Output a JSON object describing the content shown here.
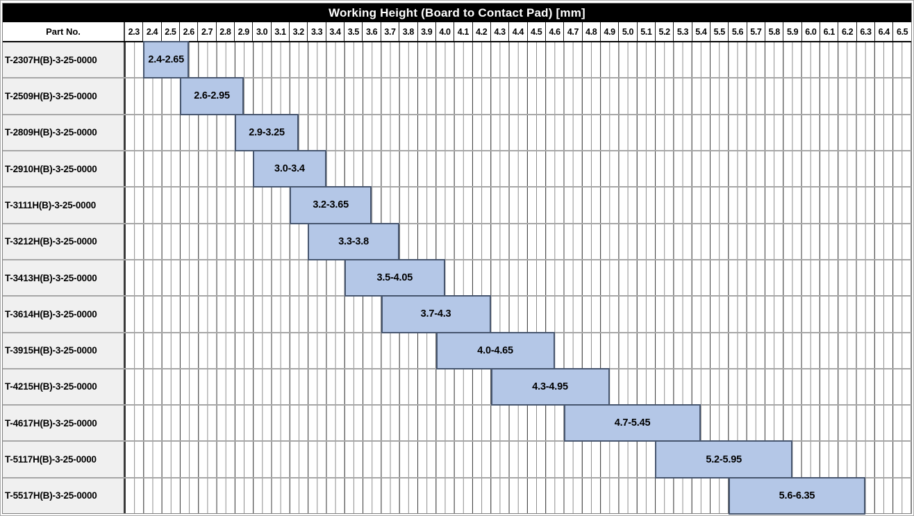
{
  "title": "Working Height (Board to Contact Pad) [mm]",
  "header": {
    "part_no_label": "Part No."
  },
  "colors": {
    "title_bg": "#000000",
    "title_text": "#ffffff",
    "bar_fill": "#b4c7e7",
    "bar_border": "#46556e",
    "part_cell_bg": "#f0f0f0",
    "grid_major": "#3d3d3d",
    "grid_minor": "#8a8a8a",
    "row_separator": "#a6a6a6"
  },
  "chart_data": {
    "type": "bar",
    "subtype": "horizontal-range",
    "title": "Working Height (Board to Contact Pad) [mm]",
    "grid": true,
    "x_axis": {
      "min": 2.3,
      "max": 6.6,
      "major_tick_step": 0.1,
      "minor_tick_step": 0.05,
      "tick_labels": [
        "2.3",
        "2.4",
        "2.5",
        "2.6",
        "2.7",
        "2.8",
        "2.9",
        "3.0",
        "3.1",
        "3.2",
        "3.3",
        "3.4",
        "3.5",
        "3.6",
        "3.7",
        "3.8",
        "3.9",
        "4.0",
        "4.1",
        "4.2",
        "4.3",
        "4.4",
        "4.5",
        "4.6",
        "4.7",
        "4.8",
        "4.9",
        "5.0",
        "5.1",
        "5.2",
        "5.3",
        "5.4",
        "5.5",
        "5.6",
        "5.7",
        "5.8",
        "5.9",
        "6.0",
        "6.1",
        "6.2",
        "6.3",
        "6.4",
        "6.5"
      ]
    },
    "rows": [
      {
        "part_no": "T-2307H(B)-3-25-0000",
        "start": 2.4,
        "end": 2.65,
        "range_label": "2.4-2.65"
      },
      {
        "part_no": "T-2509H(B)-3-25-0000",
        "start": 2.6,
        "end": 2.95,
        "range_label": "2.6-2.95"
      },
      {
        "part_no": "T-2809H(B)-3-25-0000",
        "start": 2.9,
        "end": 3.25,
        "range_label": "2.9-3.25"
      },
      {
        "part_no": "T-2910H(B)-3-25-0000",
        "start": 3.0,
        "end": 3.4,
        "range_label": "3.0-3.4"
      },
      {
        "part_no": "T-3111H(B)-3-25-0000",
        "start": 3.2,
        "end": 3.65,
        "range_label": "3.2-3.65"
      },
      {
        "part_no": "T-3212H(B)-3-25-0000",
        "start": 3.3,
        "end": 3.8,
        "range_label": "3.3-3.8"
      },
      {
        "part_no": "T-3413H(B)-3-25-0000",
        "start": 3.5,
        "end": 4.05,
        "range_label": "3.5-4.05"
      },
      {
        "part_no": "T-3614H(B)-3-25-0000",
        "start": 3.7,
        "end": 4.3,
        "range_label": "3.7-4.3"
      },
      {
        "part_no": "T-3915H(B)-3-25-0000",
        "start": 4.0,
        "end": 4.65,
        "range_label": "4.0-4.65"
      },
      {
        "part_no": "T-4215H(B)-3-25-0000",
        "start": 4.3,
        "end": 4.95,
        "range_label": "4.3-4.95"
      },
      {
        "part_no": "T-4617H(B)-3-25-0000",
        "start": 4.7,
        "end": 5.45,
        "range_label": "4.7-5.45"
      },
      {
        "part_no": "T-5117H(B)-3-25-0000",
        "start": 5.2,
        "end": 5.95,
        "range_label": "5.2-5.95"
      },
      {
        "part_no": "T-5517H(B)-3-25-0000",
        "start": 5.6,
        "end": 6.35,
        "range_label": "5.6-6.35"
      }
    ]
  }
}
